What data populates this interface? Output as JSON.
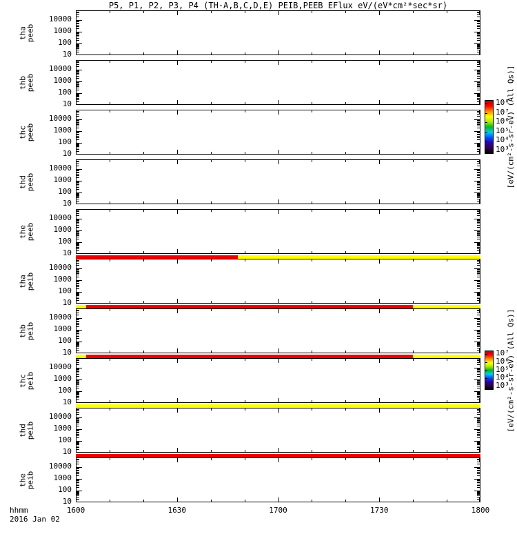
{
  "colors": {
    "stripe_red": "#ee0000",
    "stripe_yellow": "#ffff00",
    "axis": "#000000",
    "background": "#ffffff"
  },
  "chart_data": {
    "type": "heatmap",
    "title": "P5, P1, P2, P3, P4 (TH-A,B,C,D,E) PEIB,PEEB EFlux eV/(eV*cm²*sec*sr)",
    "x": {
      "label": "hhmm",
      "date": "2016 Jan 02",
      "start_hhmm": "1600",
      "end_hhmm": "1800",
      "duration_min": 120,
      "major_ticks": [
        "1600",
        "1630",
        "1700",
        "1730",
        "1800"
      ],
      "minor_tick_minutes": 10
    },
    "y": {
      "scale": "log",
      "tick_labels": [
        "10000",
        "1000",
        "100",
        "10"
      ],
      "tick_exponents": [
        4,
        3,
        2,
        1
      ]
    },
    "panels": [
      {
        "probe": "tha",
        "inst": "peeb",
        "stripes_below": []
      },
      {
        "probe": "thb",
        "inst": "peeb",
        "stripes_below": []
      },
      {
        "probe": "thc",
        "inst": "peeb",
        "stripes_below": []
      },
      {
        "probe": "thd",
        "inst": "peeb",
        "stripes_below": []
      },
      {
        "probe": "the",
        "inst": "peeb",
        "stripes_below": [
          {
            "color": "#ee0000",
            "start_min": 0,
            "end_min": 48
          },
          {
            "color": "#ffff00",
            "start_min": 48,
            "end_min": 120
          }
        ]
      },
      {
        "probe": "tha",
        "inst": "peib",
        "stripes_below": [
          {
            "color": "#ffff00",
            "start_min": 0,
            "end_min": 3
          },
          {
            "color": "#ee0000",
            "start_min": 3,
            "end_min": 100
          },
          {
            "color": "#ffff00",
            "start_min": 100,
            "end_min": 120
          }
        ]
      },
      {
        "probe": "thb",
        "inst": "peib",
        "stripes_below": [
          {
            "color": "#ffff00",
            "start_min": 0,
            "end_min": 3
          },
          {
            "color": "#ee0000",
            "start_min": 3,
            "end_min": 100
          },
          {
            "color": "#ffff00",
            "start_min": 100,
            "end_min": 120
          }
        ]
      },
      {
        "probe": "thc",
        "inst": "peib",
        "stripes_below": [
          {
            "color": "#ffff00",
            "start_min": 0,
            "end_min": 120
          }
        ]
      },
      {
        "probe": "thd",
        "inst": "peib",
        "stripes_below": [
          {
            "color": "#ee0000",
            "start_min": 0,
            "end_min": 120
          }
        ]
      },
      {
        "probe": "the",
        "inst": "peib",
        "stripes_below": []
      }
    ],
    "colorbars": [
      {
        "tick_labels": [
          "10⁸",
          "10⁷",
          "10⁶",
          "10⁵",
          "10⁴",
          "10³"
        ],
        "unit_label": "[eV/(cm²-s-sr-eV) (All Qs)]",
        "gradient": [
          "#000000",
          "#30004a",
          "#2a00b0",
          "#0055ff",
          "#00ccee",
          "#00bb22",
          "#aaee00",
          "#ffff00",
          "#ff8800",
          "#ff0000",
          "#bb0000"
        ]
      },
      {
        "tick_labels": [
          "10⁷",
          "10⁶",
          "10⁵",
          "10⁴",
          "10³"
        ],
        "unit_label": "[eV/(cm²-s-sr-eV) (All Qs)]",
        "gradient": [
          "#000000",
          "#30004a",
          "#2a00b0",
          "#0055ff",
          "#00ccee",
          "#00bb22",
          "#aaee00",
          "#ffff00",
          "#ff8800",
          "#ff0000",
          "#bb0000"
        ]
      }
    ]
  }
}
